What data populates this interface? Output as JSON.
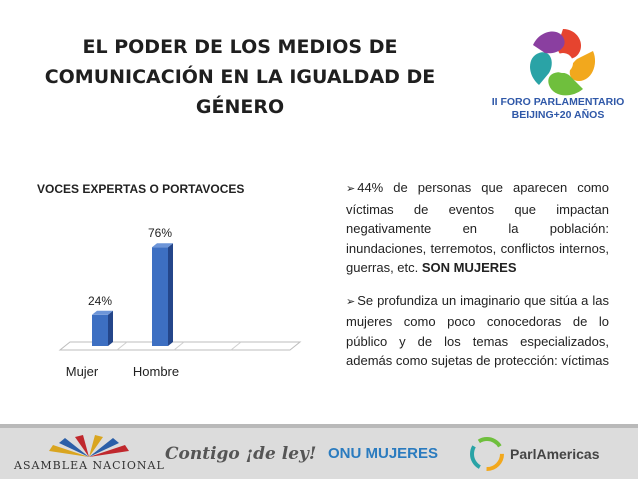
{
  "title_lines": [
    "EL PODER DE LOS MEDIOS DE",
    "COMUNICACIÓN EN LA IGUALDAD DE",
    "GÉNERO"
  ],
  "logo": {
    "line1": "II FORO PARLAMENTARIO",
    "line2": "BEIJING+20 AÑOS"
  },
  "chart_data": {
    "type": "bar",
    "title": "VOCES EXPERTAS O PORTAVOCES",
    "categories": [
      "Mujer",
      "Hombre"
    ],
    "values": [
      24,
      76
    ],
    "value_labels": [
      "24%",
      "76%"
    ],
    "ylim": [
      0,
      100
    ],
    "grid": false,
    "colors": {
      "bar": "#3d6fc2",
      "bar_dark": "#24468a"
    }
  },
  "bullets": [
    {
      "text": "44% de personas que aparecen como víctimas de eventos que impactan negativamente en la población: inundaciones, terremotos, conflictos internos, guerras, etc.",
      "bold": "SON MUJERES"
    },
    {
      "text": "Se profundiza un imaginario que sitúa a las mujeres como poco conocedoras de lo público y de los temas especializados, además como sujetas de protección: víctimas",
      "bold": ""
    }
  ],
  "footer": {
    "asamblea": "ASAMBLEA NACIONAL",
    "contigo": "Contigo ¡de ley!",
    "onu": "ONU MUJERES",
    "parlamericas": "ParlAmericas"
  }
}
